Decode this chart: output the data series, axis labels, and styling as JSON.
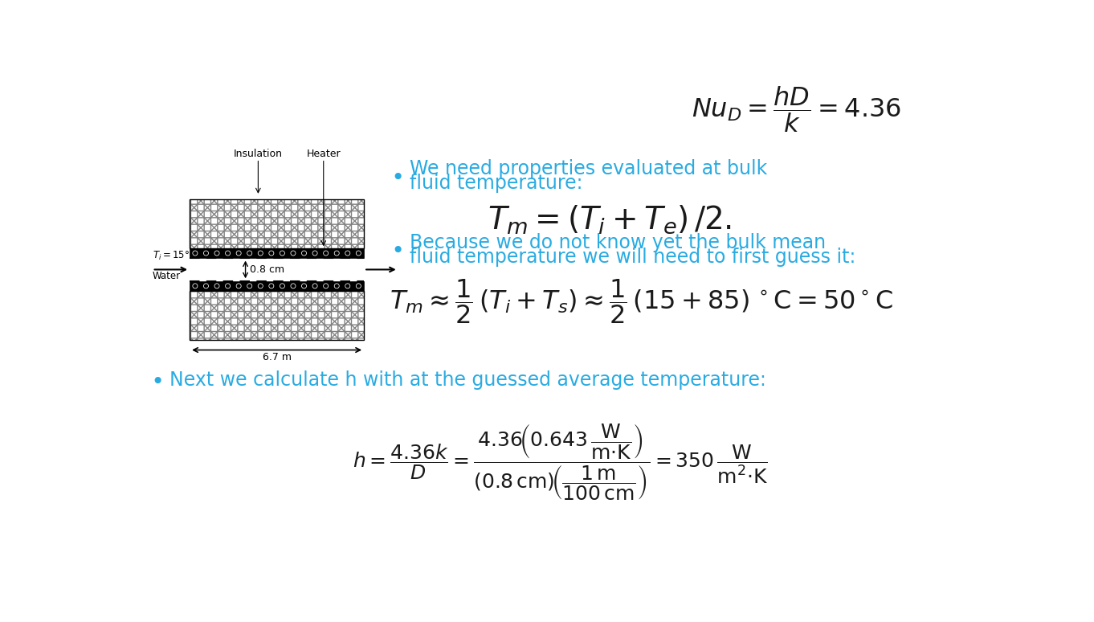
{
  "bg_color": "#ffffff",
  "cyan_color": "#29ABE2",
  "dark_color": "#1a1a1a",
  "bullet1_line1": "We need properties evaluated at bulk",
  "bullet1_line2": "fluid temperature:",
  "bullet2_line1": "Because we do not know yet the bulk mean",
  "bullet2_line2": "fluid temperature we will need to first guess it:",
  "bullet3_line1": "Next we calculate h with at the guessed average temperature:"
}
